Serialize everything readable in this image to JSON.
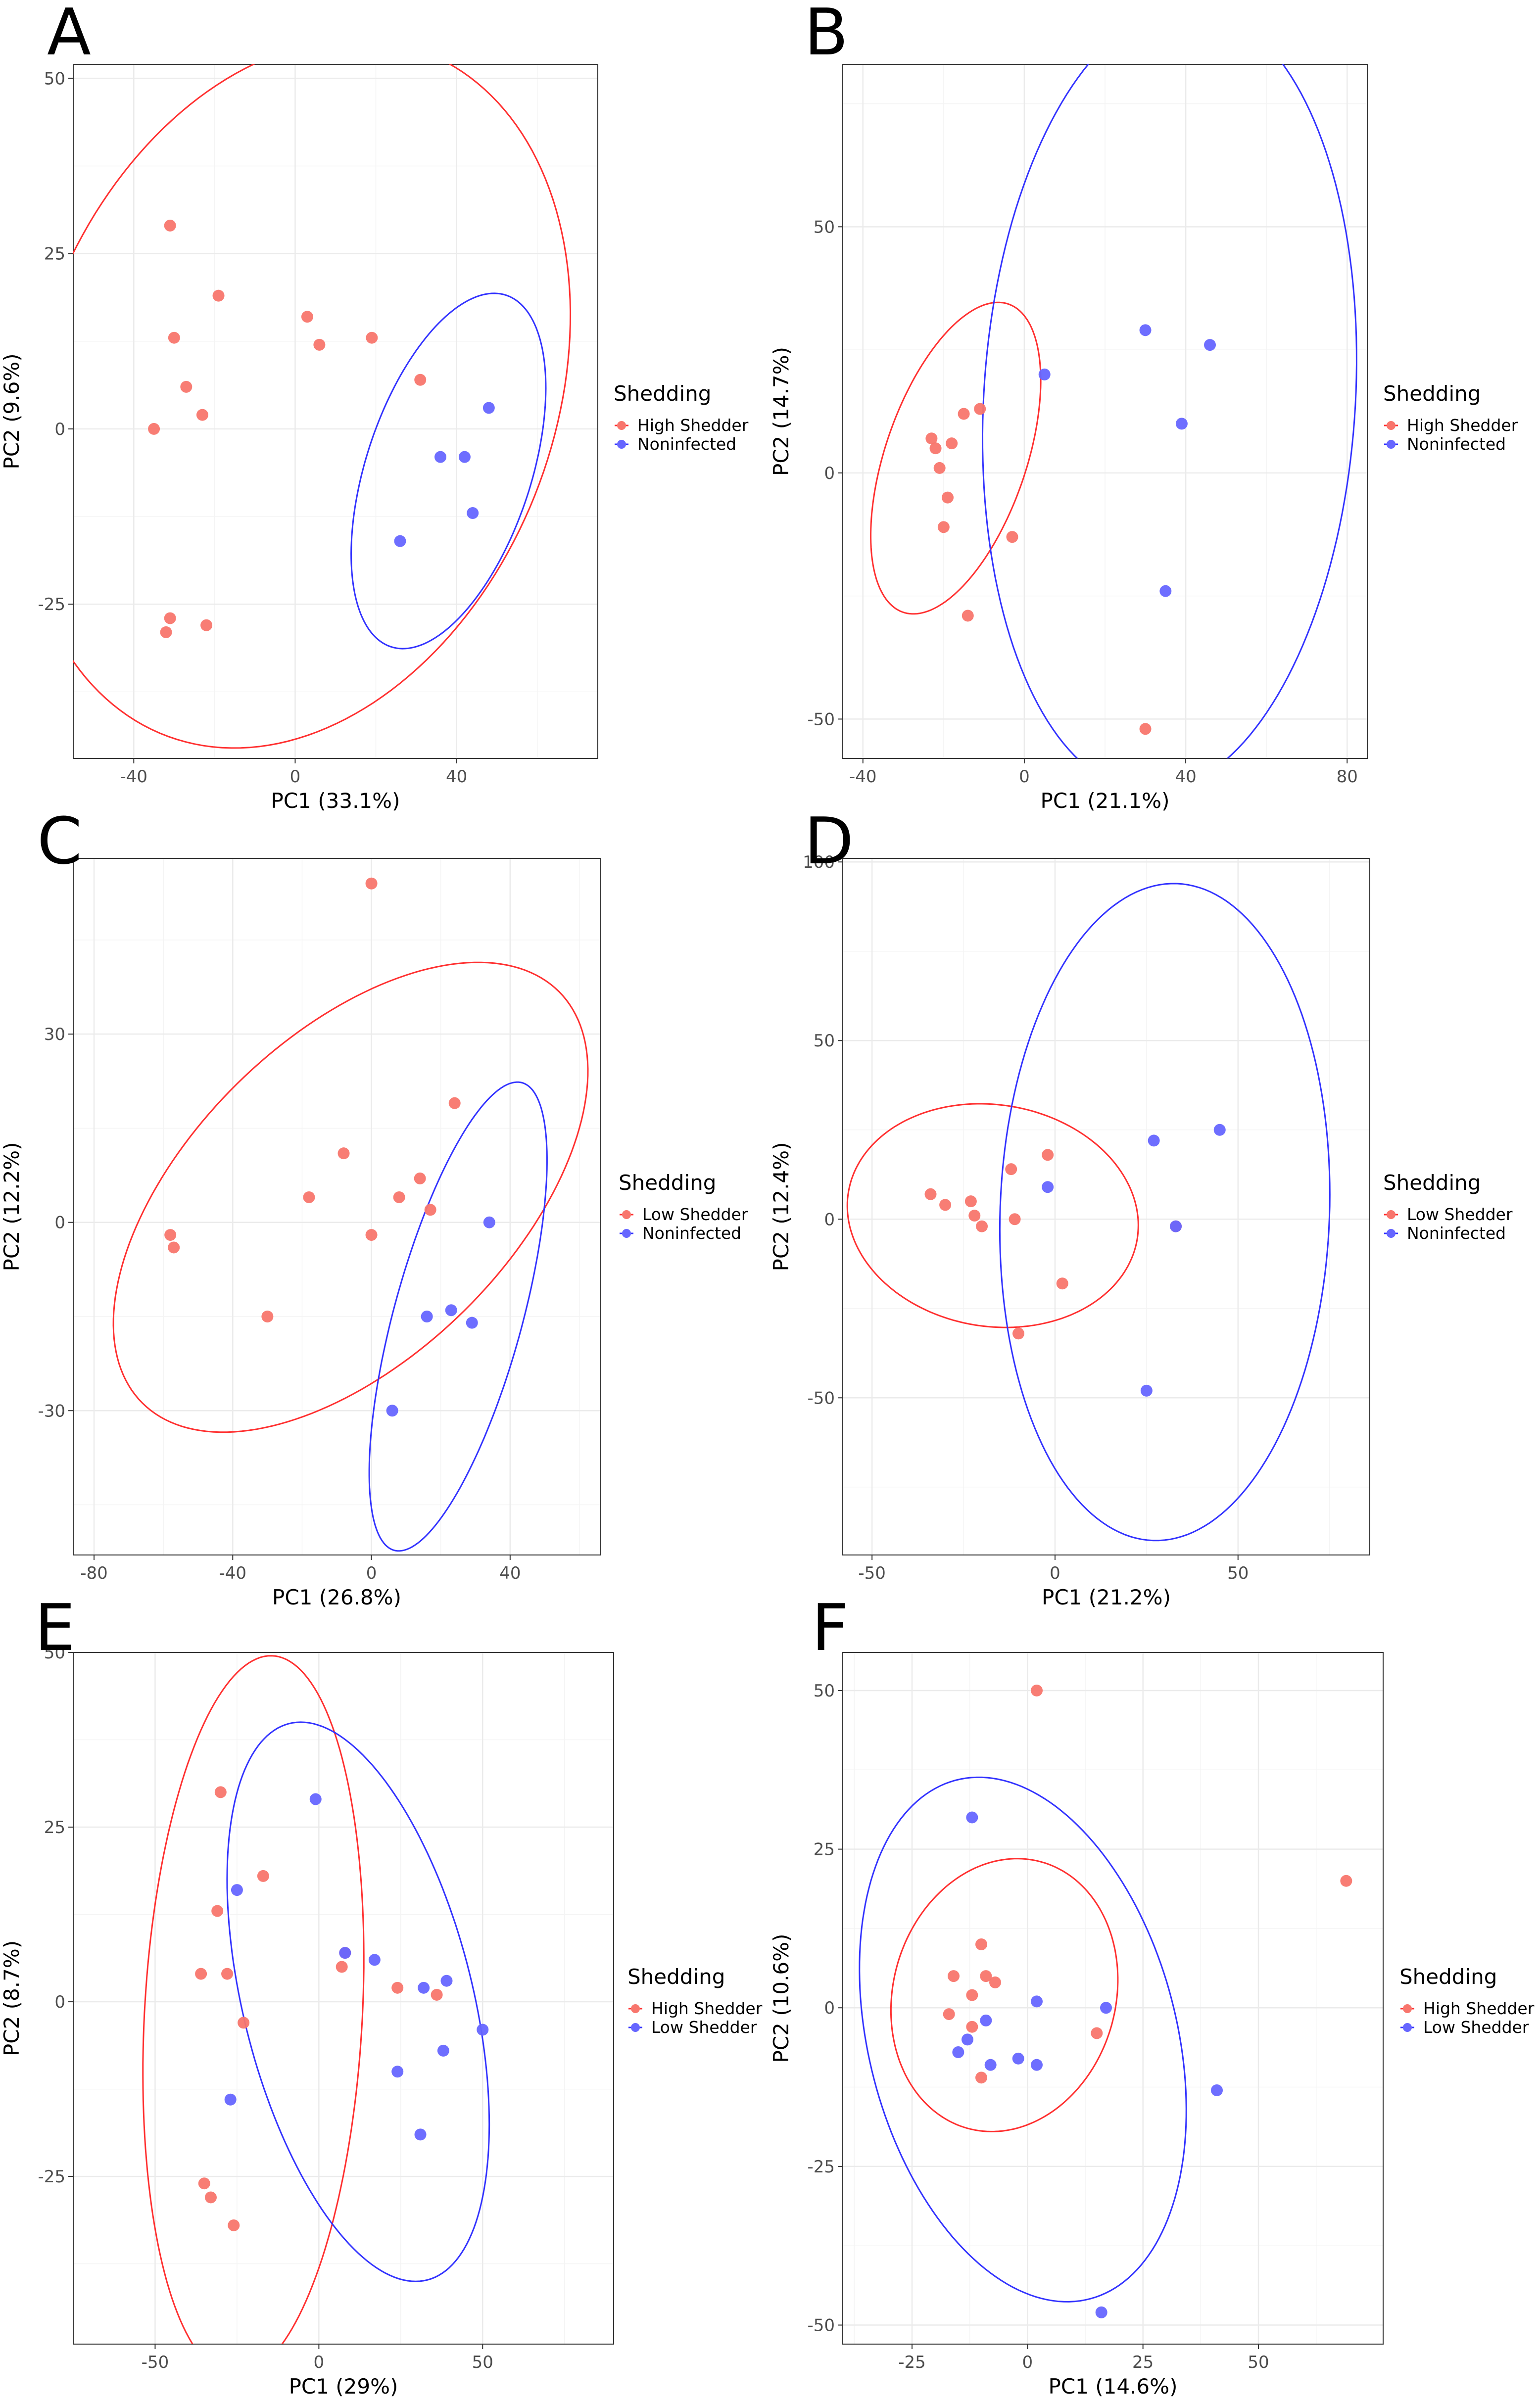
{
  "chart_data": [
    {
      "id": "A",
      "type": "scatter",
      "panel_label": "A",
      "xlabel": "PC1 (33.1%)",
      "ylabel": "PC2 (9.6%)",
      "xlim": [
        -55,
        75
      ],
      "ylim": [
        -47,
        52
      ],
      "xticks": [
        -40,
        0,
        40
      ],
      "yticks": [
        -25,
        0,
        25,
        50
      ],
      "xtick_labels": [
        "-40",
        "0",
        "40"
      ],
      "ytick_labels": [
        "-25",
        "0",
        "25",
        "50"
      ],
      "legend_title": "Shedding",
      "series": [
        {
          "name": "High Shedder",
          "color": "#F8766D",
          "ellipse": {
            "cx": 0,
            "cy": 5,
            "rx": 70,
            "ry": 48,
            "angle_deg": 18
          },
          "points": [
            [
              -31,
              29
            ],
            [
              -19,
              19
            ],
            [
              -30,
              13
            ],
            [
              -27,
              6
            ],
            [
              -23,
              2
            ],
            [
              -35,
              0
            ],
            [
              3,
              16
            ],
            [
              6,
              12
            ],
            [
              19,
              13
            ],
            [
              31,
              7
            ],
            [
              -31,
              -27
            ],
            [
              -32,
              -29
            ],
            [
              -22,
              -28
            ]
          ]
        },
        {
          "name": "Noninfected",
          "color": "#6666FF",
          "ellipse": {
            "cx": 38,
            "cy": -6,
            "rx": 30,
            "ry": 18,
            "angle_deg": 48
          },
          "points": [
            [
              48,
              3
            ],
            [
              36,
              -4
            ],
            [
              42,
              -4
            ],
            [
              44,
              -12
            ],
            [
              26,
              -16
            ]
          ]
        }
      ]
    },
    {
      "id": "B",
      "type": "scatter",
      "panel_label": "B",
      "xlabel": "PC1 (21.1%)",
      "ylabel": "PC2 (14.7%)",
      "xlim": [
        -45,
        85
      ],
      "ylim": [
        -58,
        83
      ],
      "xticks": [
        -40,
        0,
        40,
        80
      ],
      "yticks": [
        -50,
        0,
        50
      ],
      "xtick_labels": [
        "-40",
        "0",
        "40",
        "80"
      ],
      "ytick_labels": [
        "-50",
        "0",
        "50"
      ],
      "legend_title": "Shedding",
      "series": [
        {
          "name": "High Shedder",
          "color": "#F8766D",
          "ellipse": {
            "cx": -17,
            "cy": 3,
            "rx": 34,
            "ry": 17,
            "angle_deg": 65
          },
          "points": [
            [
              -15,
              12
            ],
            [
              -11,
              13
            ],
            [
              -23,
              7
            ],
            [
              -22,
              5
            ],
            [
              -18,
              6
            ],
            [
              -21,
              1
            ],
            [
              -19,
              -5
            ],
            [
              -20,
              -11
            ],
            [
              -3,
              -13
            ],
            [
              -14,
              -29
            ],
            [
              30,
              -52
            ]
          ]
        },
        {
          "name": "Noninfected",
          "color": "#6666FF",
          "ellipse": {
            "cx": 36,
            "cy": 15,
            "rx": 80,
            "ry": 46,
            "angle_deg": 85
          },
          "points": [
            [
              5,
              20
            ],
            [
              30,
              29
            ],
            [
              46,
              26
            ],
            [
              39,
              10
            ],
            [
              35,
              -24
            ]
          ]
        }
      ]
    },
    {
      "id": "C",
      "type": "scatter",
      "panel_label": "C",
      "xlabel": "PC1 (26.8%)",
      "ylabel": "PC2 (12.2%)",
      "xlim": [
        -86,
        66
      ],
      "ylim": [
        -53,
        58
      ],
      "xticks": [
        -80,
        -40,
        0,
        40
      ],
      "yticks": [
        -30,
        0,
        30
      ],
      "xtick_labels": [
        "-80",
        "-40",
        "0",
        "40"
      ],
      "ytick_labels": [
        "-30",
        "0",
        "30"
      ],
      "legend_title": "Shedding",
      "series": [
        {
          "name": "Low Shedder",
          "color": "#F8766D",
          "ellipse": {
            "cx": -6,
            "cy": 4,
            "rx": 72,
            "ry": 30,
            "angle_deg": 20
          },
          "points": [
            [
              0,
              54
            ],
            [
              24,
              19
            ],
            [
              -8,
              11
            ],
            [
              -18,
              4
            ],
            [
              14,
              7
            ],
            [
              8,
              4
            ],
            [
              17,
              2
            ],
            [
              -58,
              -2
            ],
            [
              -57,
              -4
            ],
            [
              0,
              -2
            ],
            [
              -30,
              -15
            ]
          ]
        },
        {
          "name": "Noninfected",
          "color": "#6666FF",
          "ellipse": {
            "cx": 25,
            "cy": -15,
            "rx": 42,
            "ry": 17,
            "angle_deg": 60
          },
          "points": [
            [
              34,
              0
            ],
            [
              16,
              -15
            ],
            [
              23,
              -14
            ],
            [
              29,
              -16
            ],
            [
              6,
              -30
            ]
          ]
        }
      ]
    },
    {
      "id": "D",
      "type": "scatter",
      "panel_label": "D",
      "xlabel": "PC1 (21.2%)",
      "ylabel": "PC2 (12.4%)",
      "xlim": [
        -58,
        86
      ],
      "ylim": [
        -94,
        101
      ],
      "xticks": [
        -50,
        0,
        50
      ],
      "yticks": [
        -50,
        0,
        50,
        100
      ],
      "xtick_labels": [
        "-50",
        "0",
        "50"
      ],
      "ytick_labels": [
        "-50",
        "0",
        "50",
        "100"
      ],
      "legend_title": "Shedding",
      "series": [
        {
          "name": "Low Shedder",
          "color": "#F8766D",
          "ellipse": {
            "cx": -17,
            "cy": 1,
            "rx": 40,
            "ry": 31,
            "angle_deg": -10
          },
          "points": [
            [
              -34,
              7
            ],
            [
              -30,
              4
            ],
            [
              -23,
              5
            ],
            [
              -22,
              1
            ],
            [
              -12,
              14
            ],
            [
              -2,
              18
            ],
            [
              -20,
              -2
            ],
            [
              -11,
              0
            ],
            [
              2,
              -18
            ],
            [
              -10,
              -32
            ],
            [
              33,
              -2
            ]
          ]
        },
        {
          "name": "Noninfected",
          "color": "#6666FF",
          "ellipse": {
            "cx": 30,
            "cy": 2,
            "rx": 92,
            "ry": 45,
            "angle_deg": 88
          },
          "points": [
            [
              -2,
              9
            ],
            [
              27,
              22
            ],
            [
              45,
              25
            ],
            [
              33,
              -2
            ],
            [
              25,
              -48
            ]
          ]
        }
      ]
    },
    {
      "id": "E",
      "type": "scatter",
      "panel_label": "E",
      "xlabel": "PC1 (29%)",
      "ylabel": "PC2 (8.7%)",
      "xlim": [
        -75,
        90
      ],
      "ylim": [
        -49,
        50
      ],
      "xticks": [
        -50,
        0,
        50
      ],
      "yticks": [
        -25,
        0,
        25,
        50
      ],
      "xtick_labels": [
        "-50",
        "0",
        "50"
      ],
      "ytick_labels": [
        "-25",
        "0",
        "25",
        "50"
      ],
      "legend_title": "Shedding",
      "series": [
        {
          "name": "High Shedder",
          "color": "#F8766D",
          "ellipse": {
            "cx": -20,
            "cy": -2,
            "rx": 52,
            "ry": 33,
            "angle_deg": 80
          },
          "points": [
            [
              -30,
              30
            ],
            [
              -17,
              18
            ],
            [
              -31,
              13
            ],
            [
              -28,
              4
            ],
            [
              -36,
              4
            ],
            [
              -23,
              -3
            ],
            [
              8,
              7
            ],
            [
              7,
              5
            ],
            [
              24,
              2
            ],
            [
              36,
              1
            ],
            [
              -35,
              -26
            ],
            [
              -33,
              -28
            ],
            [
              -26,
              -32
            ]
          ]
        },
        {
          "name": "Low Shedder",
          "color": "#6666FF",
          "ellipse": {
            "cx": 12,
            "cy": 0,
            "rx": 48,
            "ry": 30,
            "angle_deg": -45
          },
          "points": [
            [
              -1,
              29
            ],
            [
              -25,
              16
            ],
            [
              8,
              7
            ],
            [
              17,
              6
            ],
            [
              32,
              2
            ],
            [
              39,
              3
            ],
            [
              38,
              -7
            ],
            [
              50,
              -4
            ],
            [
              24,
              -10
            ],
            [
              -27,
              -14
            ],
            [
              31,
              -19
            ]
          ]
        }
      ]
    },
    {
      "id": "F",
      "type": "scatter",
      "panel_label": "F",
      "xlabel": "PC1 (14.6%)",
      "ylabel": "PC2 (10.6%)",
      "xlim": [
        -40,
        77
      ],
      "ylim": [
        -53,
        56
      ],
      "xticks": [
        -25,
        0,
        25,
        50
      ],
      "yticks": [
        -50,
        -25,
        0,
        25,
        50
      ],
      "xtick_labels": [
        "-25",
        "0",
        "25",
        "50"
      ],
      "ytick_labels": [
        "-50",
        "-25",
        "0",
        "25",
        "50"
      ],
      "legend_title": "Shedding",
      "series": [
        {
          "name": "High Shedder",
          "color": "#F8766D",
          "ellipse": {
            "cx": -5,
            "cy": 2,
            "rx": 25,
            "ry": 21,
            "angle_deg": 20
          },
          "points": [
            [
              2,
              50
            ],
            [
              -10,
              10
            ],
            [
              -16,
              5
            ],
            [
              -9,
              5
            ],
            [
              -7,
              4
            ],
            [
              -12,
              2
            ],
            [
              -17,
              -1
            ],
            [
              -12,
              -3
            ],
            [
              15,
              -4
            ],
            [
              -10,
              -11
            ],
            [
              69,
              20
            ]
          ]
        },
        {
          "name": "Low Shedder",
          "color": "#6666FF",
          "ellipse": {
            "cx": -1,
            "cy": -5,
            "rx": 44,
            "ry": 32,
            "angle_deg": -60
          },
          "points": [
            [
              -12,
              30
            ],
            [
              2,
              1
            ],
            [
              17,
              0
            ],
            [
              -9,
              -2
            ],
            [
              -15,
              -7
            ],
            [
              -13,
              -5
            ],
            [
              -2,
              -8
            ],
            [
              -8,
              -9
            ],
            [
              2,
              -9
            ],
            [
              41,
              -13
            ],
            [
              16,
              -48
            ]
          ]
        }
      ]
    }
  ]
}
